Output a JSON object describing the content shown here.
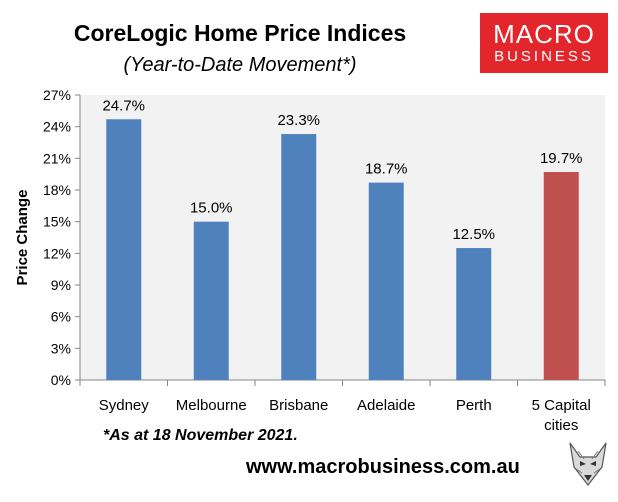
{
  "header": {
    "title": "CoreLogic Home Price Indices",
    "subtitle": "(Year-to-Date Movement*)"
  },
  "logo": {
    "top": "MACRO",
    "bottom": "BUSINESS",
    "color": "#e3262b"
  },
  "footer": {
    "footnote": "*As at 18 November 2021.",
    "website": "www.macrobusiness.com.au"
  },
  "chart_data": {
    "type": "bar",
    "ylabel": "Price Change",
    "xlabel": "",
    "ylim": [
      0,
      27
    ],
    "yticks": [
      "0%",
      "3%",
      "6%",
      "9%",
      "12%",
      "15%",
      "18%",
      "21%",
      "24%",
      "27%"
    ],
    "categories": [
      [
        "Sydney"
      ],
      [
        "Melbourne"
      ],
      [
        "Brisbane"
      ],
      [
        "Adelaide"
      ],
      [
        "Perth"
      ],
      [
        "5 Capital",
        "cities"
      ]
    ],
    "values": [
      24.7,
      15.0,
      23.3,
      18.7,
      12.5,
      19.7
    ],
    "data_labels": [
      "24.7%",
      "15.0%",
      "23.3%",
      "18.7%",
      "12.5%",
      "19.7%"
    ],
    "colors": [
      "#4f81bd",
      "#4f81bd",
      "#4f81bd",
      "#4f81bd",
      "#4f81bd",
      "#c0504d"
    ],
    "plot_background": "#f2f2f2",
    "grid": false,
    "legend": "none"
  }
}
